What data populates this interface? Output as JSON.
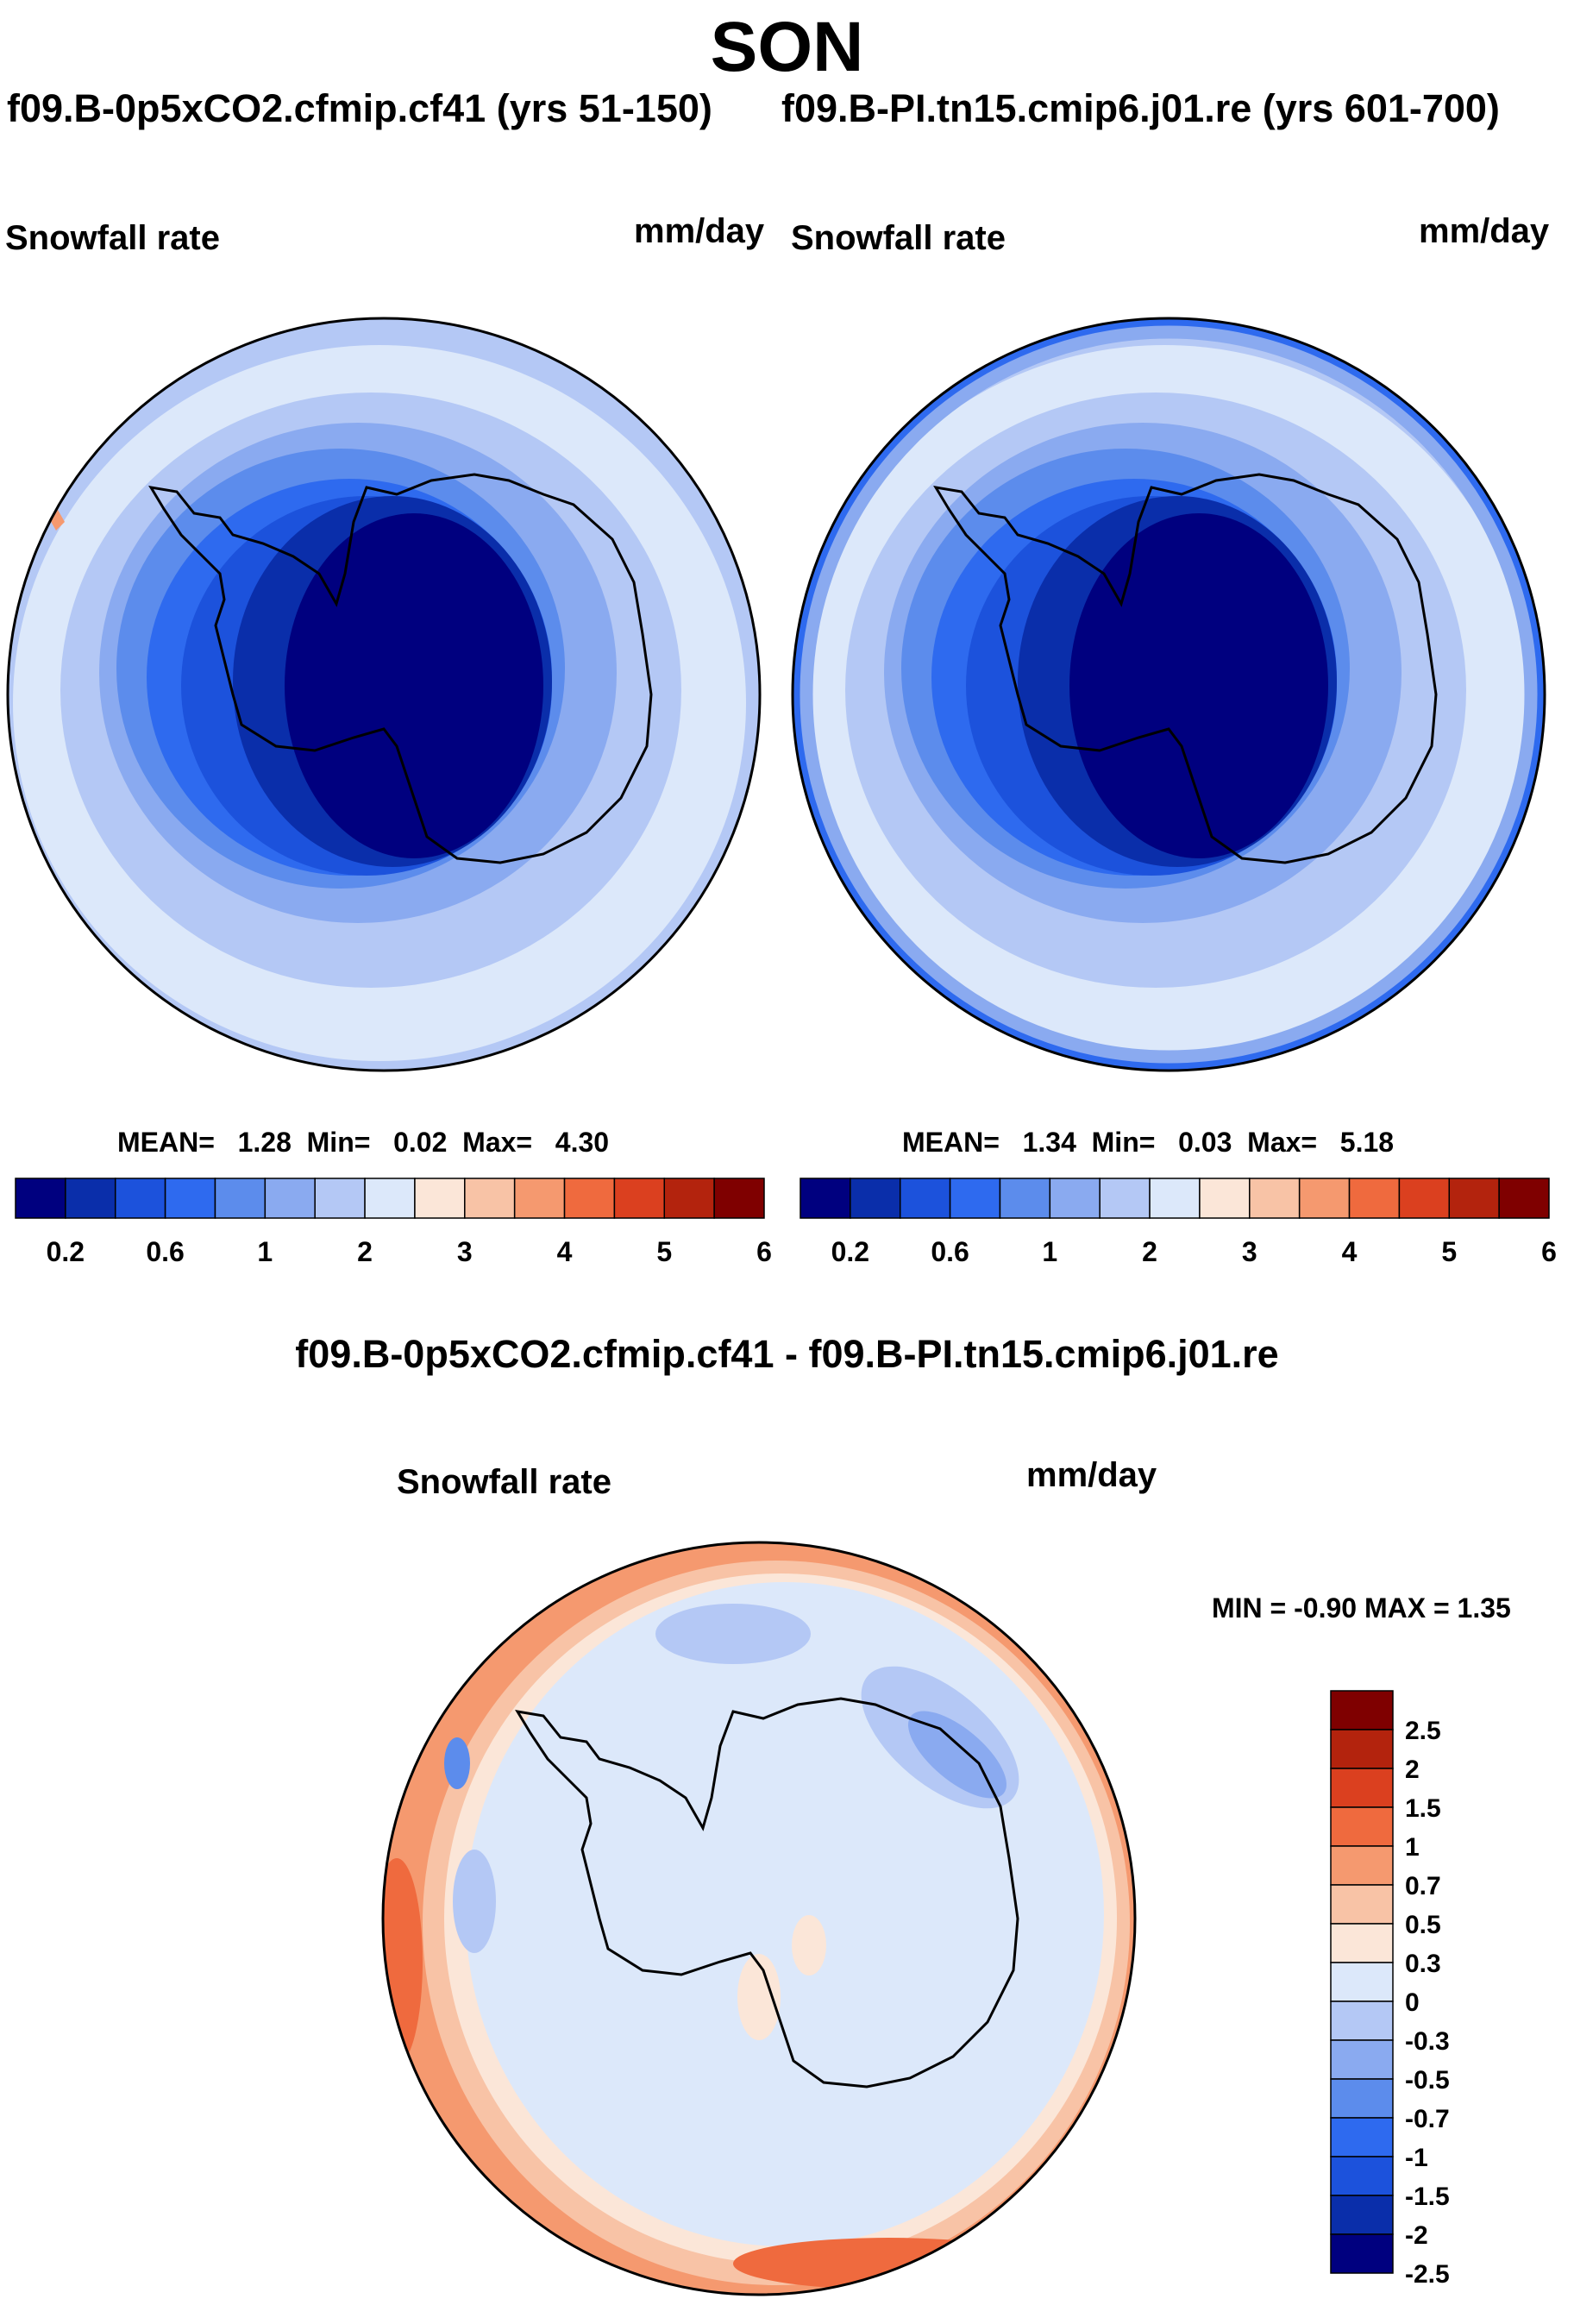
{
  "title": "SON",
  "panels": [
    {
      "case_title": "f09.B-0p5xCO2.cfmip.cf41 (yrs 51-150)",
      "variable": "Snowfall rate",
      "units": "mm/day",
      "stats": {
        "mean_label": "MEAN=",
        "mean": "1.28",
        "min_label": "Min=",
        "min": "0.02",
        "max_label": "Max=",
        "max": "4.30"
      }
    },
    {
      "case_title": "f09.B-PI.tn15.cmip6.j01.re (yrs 601-700)",
      "variable": "Snowfall rate",
      "units": "mm/day",
      "stats": {
        "mean_label": "MEAN=",
        "mean": "1.34",
        "min_label": "Min=",
        "min": "0.03",
        "max_label": "Max=",
        "max": "5.18"
      }
    }
  ],
  "shared_colorbar": {
    "colors": [
      "#00007f",
      "#0a2eaa",
      "#1c52dc",
      "#2e6aef",
      "#5c8cec",
      "#8aaaf0",
      "#b4c8f5",
      "#dce8fa",
      "#fbe6d8",
      "#f8c3a6",
      "#f5996f",
      "#ef6a3e",
      "#db401f",
      "#b3230d",
      "#7f0000"
    ],
    "tick_labels": [
      "0.2",
      "0.6",
      "1",
      "2",
      "3",
      "4",
      "5",
      "6"
    ]
  },
  "difference": {
    "title": "f09.B-0p5xCO2.cfmip.cf41 - f09.B-PI.tn15.cmip6.j01.re",
    "variable": "Snowfall rate",
    "units": "mm/day",
    "range_text": "MIN = -0.90 MAX = 1.35",
    "colorbar": {
      "colors": [
        "#7f0000",
        "#b3230d",
        "#db401f",
        "#ef6a3e",
        "#f5996f",
        "#f8c3a6",
        "#fbe6d8",
        "#dce8fa",
        "#b4c8f5",
        "#8aaaf0",
        "#5c8cec",
        "#2e6aef",
        "#1c52dc",
        "#0a2eaa",
        "#00007f"
      ],
      "tick_labels": [
        "2.5",
        "2",
        "1.5",
        "1",
        "0.7",
        "0.5",
        "0.3",
        "0",
        "-0.3",
        "-0.5",
        "-0.7",
        "-1",
        "-1.5",
        "-2",
        "-2.5"
      ]
    }
  }
}
